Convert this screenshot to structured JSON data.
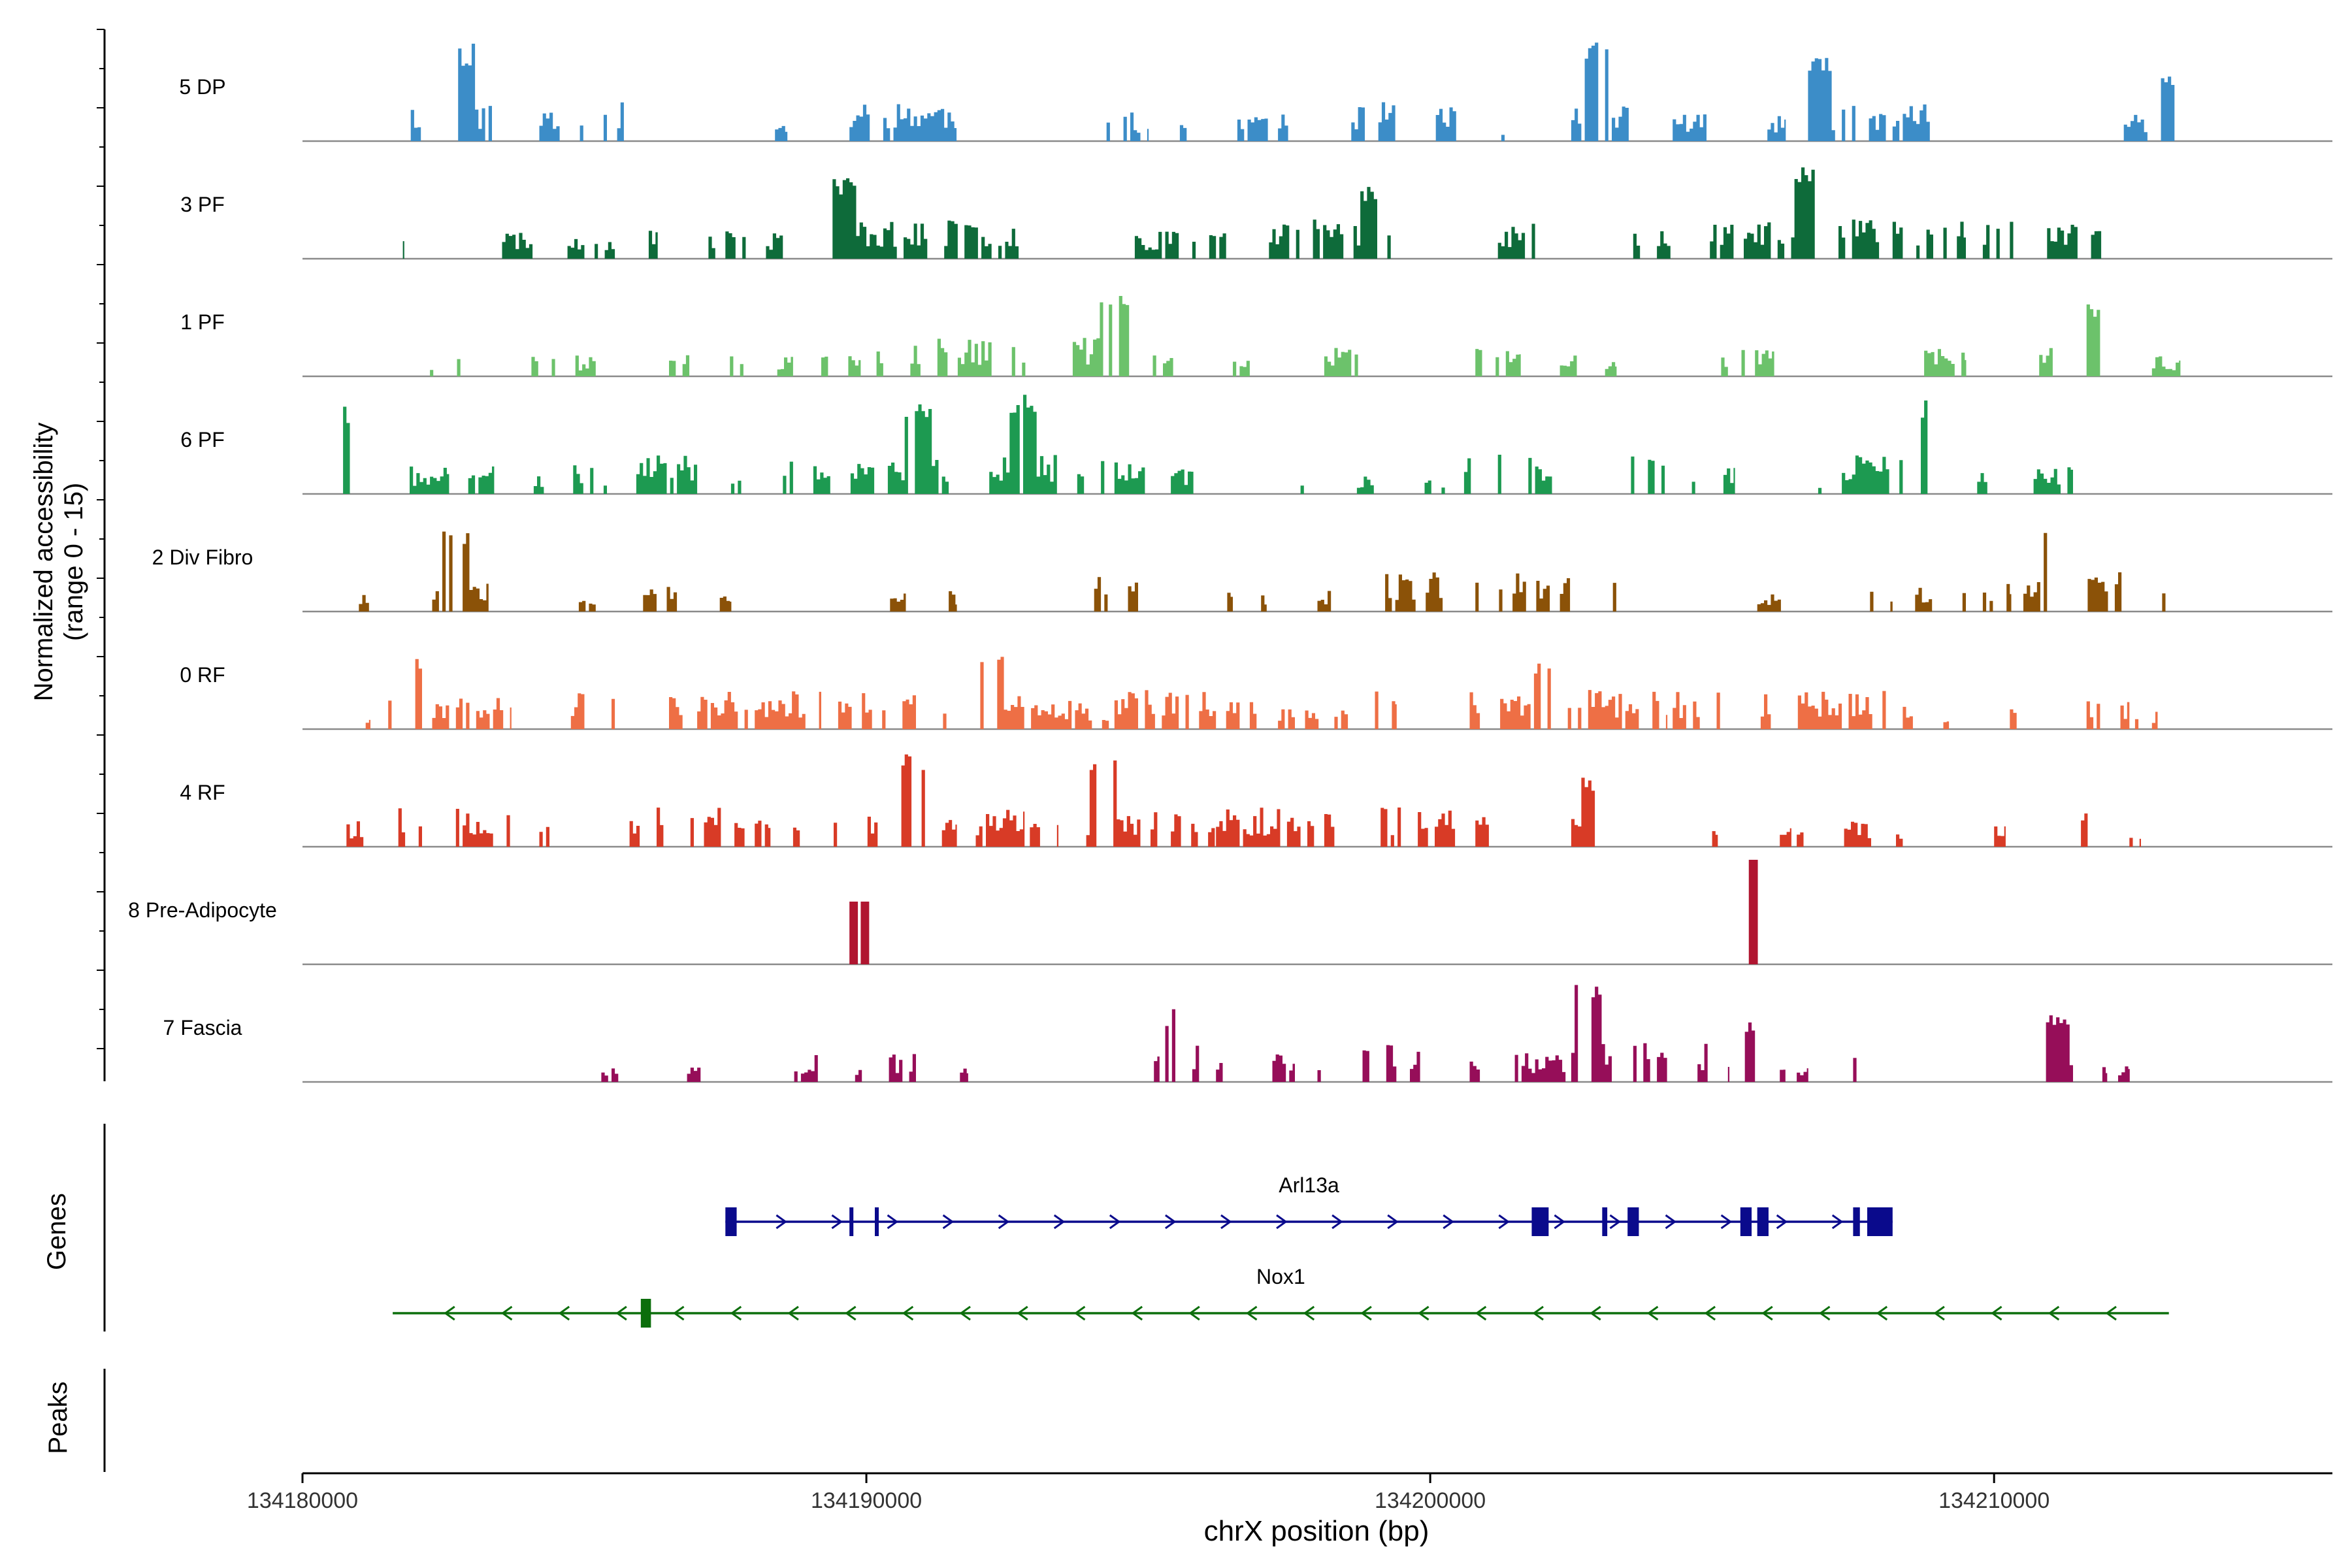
{
  "chart_data": {
    "type": "area",
    "title": "",
    "xlabel": "chrX position (bp)",
    "ylabel": [
      "Normalized accessibility",
      "(range 0 - 15)"
    ],
    "xlim": [
      134180000,
      134216000
    ],
    "x_ticks": [
      134180000,
      134190000,
      134200000,
      134210000
    ],
    "x_tick_labels": [
      "134180000",
      "134190000",
      "134200000",
      "134210000"
    ],
    "y_range": [
      0,
      15
    ],
    "series": [
      {
        "name": "5 DP",
        "color": "#3C8DC8",
        "seed": 11,
        "segments": [
          [
            134181800,
            134183600,
            2
          ],
          [
            134184200,
            134186200,
            2
          ],
          [
            134188200,
            134188600,
            0
          ],
          [
            134189700,
            134191600,
            2
          ],
          [
            134192000,
            134192200,
            0
          ],
          [
            134193900,
            134195000,
            1
          ],
          [
            134195500,
            134195700,
            0
          ],
          [
            134196400,
            134198400,
            1
          ],
          [
            134198600,
            134200900,
            2
          ],
          [
            134201200,
            134201600,
            0
          ],
          [
            134202500,
            134204000,
            2
          ],
          [
            134204300,
            134206300,
            1
          ],
          [
            134206700,
            134209200,
            2
          ],
          [
            134209500,
            134209900,
            0
          ],
          [
            134212300,
            134213200,
            1
          ]
        ],
        "peaks": [
          [
            134182800,
            0.95
          ],
          [
            134198000,
            0.8
          ],
          [
            134202900,
            0.95
          ],
          [
            134205700,
            0.85
          ],
          [
            134206900,
            0.8
          ],
          [
            134213000,
            0.7
          ]
        ],
        "spikes": []
      },
      {
        "name": "3 PF",
        "color": "#0E6B3A",
        "seed": 23,
        "segments": [
          [
            134180600,
            134181000,
            0
          ],
          [
            134181600,
            134181800,
            0
          ],
          [
            134183300,
            134184200,
            1
          ],
          [
            134184400,
            134186300,
            1
          ],
          [
            134187200,
            134188600,
            1
          ],
          [
            134189400,
            134192800,
            2
          ],
          [
            134194700,
            134196400,
            1
          ],
          [
            134196900,
            134199300,
            2
          ],
          [
            134201200,
            134204600,
            2
          ],
          [
            134204900,
            134209500,
            2
          ],
          [
            134209800,
            134211900,
            2
          ]
        ],
        "peaks": [
          [
            134189600,
            0.8
          ],
          [
            134199000,
            0.7
          ],
          [
            134206700,
            0.9
          ],
          [
            134212200,
            0.6
          ]
        ],
        "spikes": []
      },
      {
        "name": "1 PF",
        "color": "#6CC26B",
        "seed": 37,
        "segments": [
          [
            134182200,
            134183200,
            0
          ],
          [
            134184000,
            134185200,
            0
          ],
          [
            134186200,
            134187200,
            1
          ],
          [
            134187400,
            134188700,
            0
          ],
          [
            134189200,
            134189900,
            0
          ],
          [
            134190000,
            134194200,
            2
          ],
          [
            134194300,
            134195600,
            1
          ],
          [
            134196500,
            134196800,
            0
          ],
          [
            134198000,
            134198800,
            1
          ],
          [
            134200800,
            134201600,
            1
          ],
          [
            134202300,
            134202700,
            0
          ],
          [
            134203100,
            134203300,
            0
          ],
          [
            134204800,
            134206100,
            1
          ],
          [
            134206800,
            134207000,
            0
          ],
          [
            134208100,
            134209500,
            1
          ],
          [
            134210800,
            134212100,
            1
          ],
          [
            134212800,
            134213300,
            0
          ]
        ],
        "peaks": [
          [
            134194400,
            0.8
          ],
          [
            134211700,
            0.7
          ]
        ],
        "spikes": []
      },
      {
        "name": "6 PF",
        "color": "#1D9A51",
        "seed": 41,
        "segments": [
          [
            134180600,
            134181300,
            2
          ],
          [
            134181900,
            134182600,
            1
          ],
          [
            134182700,
            134183400,
            1
          ],
          [
            134184100,
            134184400,
            0
          ],
          [
            134184800,
            134185400,
            1
          ],
          [
            134185800,
            134187000,
            2
          ],
          [
            134187600,
            134187800,
            0
          ],
          [
            134188100,
            134192600,
            2
          ],
          [
            134192600,
            134195300,
            2
          ],
          [
            134195400,
            134195800,
            1
          ],
          [
            134196300,
            134196600,
            0
          ],
          [
            134197700,
            134198000,
            0
          ],
          [
            134198700,
            134199000,
            0
          ],
          [
            134199900,
            134200400,
            0
          ],
          [
            134200600,
            134202200,
            2
          ],
          [
            134202600,
            134202800,
            0
          ],
          [
            134203500,
            134204700,
            2
          ],
          [
            134204900,
            134205400,
            1
          ],
          [
            134206700,
            134207000,
            0
          ],
          [
            134207300,
            134208400,
            2
          ],
          [
            134208700,
            134208900,
            0
          ],
          [
            134209700,
            134210000,
            0
          ],
          [
            134210700,
            134211400,
            1
          ],
          [
            134211500,
            134212200,
            1
          ]
        ],
        "peaks": [
          [
            134180900,
            0.9
          ],
          [
            134190900,
            0.9
          ],
          [
            134192800,
            1.0
          ],
          [
            134208800,
            0.9
          ]
        ],
        "spikes": []
      },
      {
        "name": "2 Div Fibro",
        "color": "#8B5208",
        "seed": 53,
        "segments": [
          [
            134181000,
            134181300,
            0
          ],
          [
            134182300,
            134183300,
            2
          ],
          [
            134184900,
            134185200,
            0
          ],
          [
            134185800,
            134186700,
            1
          ],
          [
            134187400,
            134187600,
            0
          ],
          [
            134189700,
            134190700,
            1
          ],
          [
            134191400,
            134191600,
            0
          ],
          [
            134193800,
            134195300,
            2
          ],
          [
            134196400,
            134196500,
            0
          ],
          [
            134197000,
            134197100,
            0
          ],
          [
            134198000,
            134198400,
            0
          ],
          [
            134199200,
            134200700,
            2
          ],
          [
            134200800,
            134202600,
            2
          ],
          [
            134202700,
            134203400,
            1
          ],
          [
            134205800,
            134206300,
            0
          ],
          [
            134207800,
            134208200,
            0
          ],
          [
            134208600,
            134210300,
            1
          ],
          [
            134210400,
            134212300,
            2
          ],
          [
            134212800,
            134213300,
            0
          ]
        ],
        "peaks": [
          [
            134182700,
            0.8
          ],
          [
            134211100,
            0.8
          ]
        ],
        "spikes": []
      },
      {
        "name": "0 RF",
        "color": "#EE6F45",
        "seed": 67,
        "segments": [
          [
            134181000,
            134181200,
            0
          ],
          [
            134181400,
            134183700,
            2
          ],
          [
            134184700,
            134186900,
            2
          ],
          [
            134187000,
            134189200,
            2
          ],
          [
            134189500,
            134192800,
            2
          ],
          [
            134192800,
            134194300,
            1
          ],
          [
            134194400,
            134197100,
            2
          ],
          [
            134197300,
            134198100,
            1
          ],
          [
            134198300,
            134199400,
            2
          ],
          [
            134200700,
            134204200,
            2
          ],
          [
            134204300,
            134206700,
            2
          ],
          [
            134206700,
            134208800,
            2
          ],
          [
            134209100,
            134209200,
            0
          ],
          [
            134210100,
            134210400,
            0
          ],
          [
            134210700,
            134211000,
            0
          ],
          [
            134211400,
            134212400,
            1
          ],
          [
            134212500,
            134212900,
            0
          ]
        ],
        "peaks": [
          [
            134182000,
            0.7
          ],
          [
            134192200,
            0.7
          ],
          [
            134202100,
            0.7
          ]
        ],
        "spikes": []
      },
      {
        "name": "4 RF",
        "color": "#D83B26",
        "seed": 79,
        "segments": [
          [
            134180600,
            134181200,
            1
          ],
          [
            134181700,
            134183800,
            2
          ],
          [
            134184200,
            134184600,
            1
          ],
          [
            134185800,
            134188300,
            2
          ],
          [
            134188700,
            134191600,
            2
          ],
          [
            134191700,
            134192800,
            2
          ],
          [
            134192900,
            134193400,
            1
          ],
          [
            134193900,
            134196200,
            2
          ],
          [
            134196200,
            134198900,
            2
          ],
          [
            134199000,
            134201200,
            2
          ],
          [
            134202000,
            134202300,
            0
          ],
          [
            134202500,
            134203300,
            1
          ],
          [
            134203400,
            134203700,
            0
          ],
          [
            134205000,
            134205100,
            0
          ],
          [
            134205300,
            134205500,
            0
          ],
          [
            134206200,
            134206400,
            0
          ],
          [
            134206500,
            134208000,
            1
          ],
          [
            134208200,
            134208600,
            0
          ],
          [
            134210000,
            134210200,
            0
          ],
          [
            134211000,
            134212200,
            2
          ],
          [
            134212400,
            134212600,
            0
          ]
        ],
        "peaks": [
          [
            134190800,
            0.95
          ],
          [
            134194200,
            0.85
          ],
          [
            134202900,
            0.7
          ]
        ],
        "spikes": []
      },
      {
        "name": "8 Pre-Adipocyte",
        "color": "#B01530",
        "seed": 83,
        "segments": [],
        "peaks": [],
        "spikes": [
          [
            134189700,
            134189850,
            0.6
          ],
          [
            134189900,
            134190050,
            0.6
          ],
          [
            134205650,
            134205810,
            1.0
          ]
        ]
      },
      {
        "name": "7 Fascia",
        "color": "#960E59",
        "seed": 97,
        "segments": [
          [
            134185300,
            134185600,
            0
          ],
          [
            134186700,
            134187100,
            0
          ],
          [
            134188600,
            134189400,
            1
          ],
          [
            134189800,
            134190000,
            0
          ],
          [
            134190400,
            134191000,
            1
          ],
          [
            134191600,
            134191800,
            0
          ],
          [
            134194800,
            134195200,
            1
          ],
          [
            134195300,
            134195900,
            2
          ],
          [
            134196200,
            134196400,
            0
          ],
          [
            134197200,
            134197600,
            1
          ],
          [
            134198000,
            134198200,
            0
          ],
          [
            134198800,
            134200100,
            2
          ],
          [
            134200700,
            134200900,
            0
          ],
          [
            134201500,
            134202400,
            1
          ],
          [
            134202500,
            134203300,
            2
          ],
          [
            134203600,
            134205300,
            2
          ],
          [
            134205400,
            134205900,
            1
          ],
          [
            134206200,
            134206300,
            0
          ],
          [
            134206500,
            134206700,
            0
          ],
          [
            134207500,
            134207800,
            1
          ],
          [
            134209700,
            134210000,
            0
          ],
          [
            134210800,
            134211400,
            1
          ],
          [
            134211800,
            134212000,
            0
          ],
          [
            134212200,
            134212400,
            0
          ]
        ],
        "peaks": [
          [
            134195500,
            0.7
          ],
          [
            134202800,
            1.0
          ],
          [
            134205600,
            0.6
          ],
          [
            134208000,
            0.6
          ],
          [
            134211100,
            0.65
          ]
        ],
        "spikes": []
      }
    ],
    "genes_label": "Genes",
    "peaks_label": "Peaks",
    "genes": [
      {
        "name": "Arl13a",
        "strand": "+",
        "color": "#0A0A8C",
        "start": 134187500,
        "end": 134208200,
        "exons": [
          [
            134187500,
            134187700
          ],
          [
            134189700,
            134189770
          ],
          [
            134190150,
            134190220
          ],
          [
            134201800,
            134202100
          ],
          [
            134203050,
            134203140
          ],
          [
            134203500,
            134203700
          ],
          [
            134205500,
            134205700
          ],
          [
            134205800,
            134206000
          ],
          [
            134207500,
            134207620
          ],
          [
            134207750,
            134208200
          ]
        ]
      },
      {
        "name": "Nox1",
        "strand": "-",
        "color": "#0C6E0C",
        "start": 134181600,
        "end": 134213100,
        "exons": [
          [
            134186000,
            134186180
          ]
        ]
      }
    ]
  }
}
